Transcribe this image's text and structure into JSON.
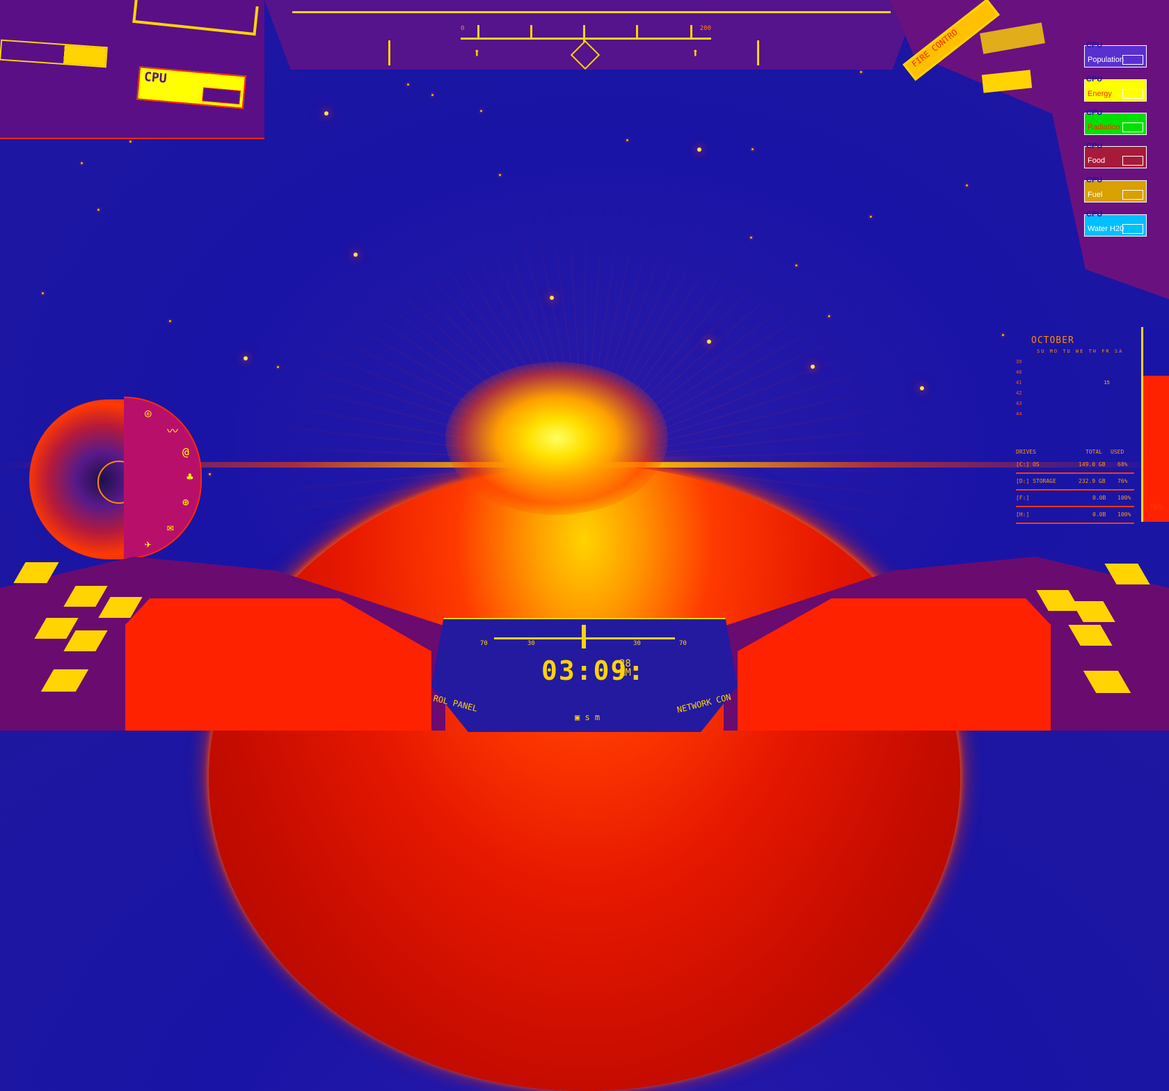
{
  "top_left": {
    "cpu_label": "CPU"
  },
  "top_right": {
    "fire_control_label": "FIRE CONTRO"
  },
  "top_gauge": {
    "left_value": "0",
    "right_value": "200"
  },
  "meters": [
    {
      "cpu": "CPU",
      "label": "Population",
      "color": "#5a2fd0",
      "text_color": "#ffffff"
    },
    {
      "cpu": "CPU",
      "label": "Energy",
      "color": "#ffff00",
      "text_color": "#ff2a00"
    },
    {
      "cpu": "CPU",
      "label": "Radiation",
      "color": "#00e000",
      "text_color": "#ff2a00"
    },
    {
      "cpu": "CPU",
      "label": "Food",
      "color": "#a81a3a",
      "text_color": "#ffffff"
    },
    {
      "cpu": "CPU",
      "label": "Fuel",
      "color": "#d8a000",
      "text_color": "#ffffff"
    },
    {
      "cpu": "CPU",
      "label": "Water H20",
      "color": "#00c0ff",
      "text_color": "#ffffff"
    }
  ],
  "calendar": {
    "month": "OCTOBER",
    "days": "SU MO TU WE TH FR SA",
    "weeks": [
      "39",
      "40",
      "41",
      "42",
      "43",
      "44"
    ],
    "highlight_day": "15"
  },
  "drives": {
    "header": {
      "label": "DRIVES",
      "total": "TOTAL",
      "used": "USED"
    },
    "rows": [
      {
        "name": "[C:] OS",
        "total": "149.0 GB",
        "used": "68%"
      },
      {
        "name": "[D:] STORAGE",
        "total": "232.9 GB",
        "used": "76%"
      },
      {
        "name": "[F:]",
        "total": "0.0B",
        "used": "100%"
      },
      {
        "name": "[H:]",
        "total": "0.0B",
        "used": "100%"
      }
    ],
    "side_percent": "76%"
  },
  "console": {
    "left_label": "ROL PANEL",
    "right_label": "NETWORK CON",
    "scale": {
      "l70": "70",
      "l30": "30",
      "r30": "30",
      "r70": "70"
    },
    "bottom": "s m"
  },
  "clock": {
    "hours": "03",
    "minutes": "09",
    "seconds": "28",
    "ampm": "AM"
  }
}
